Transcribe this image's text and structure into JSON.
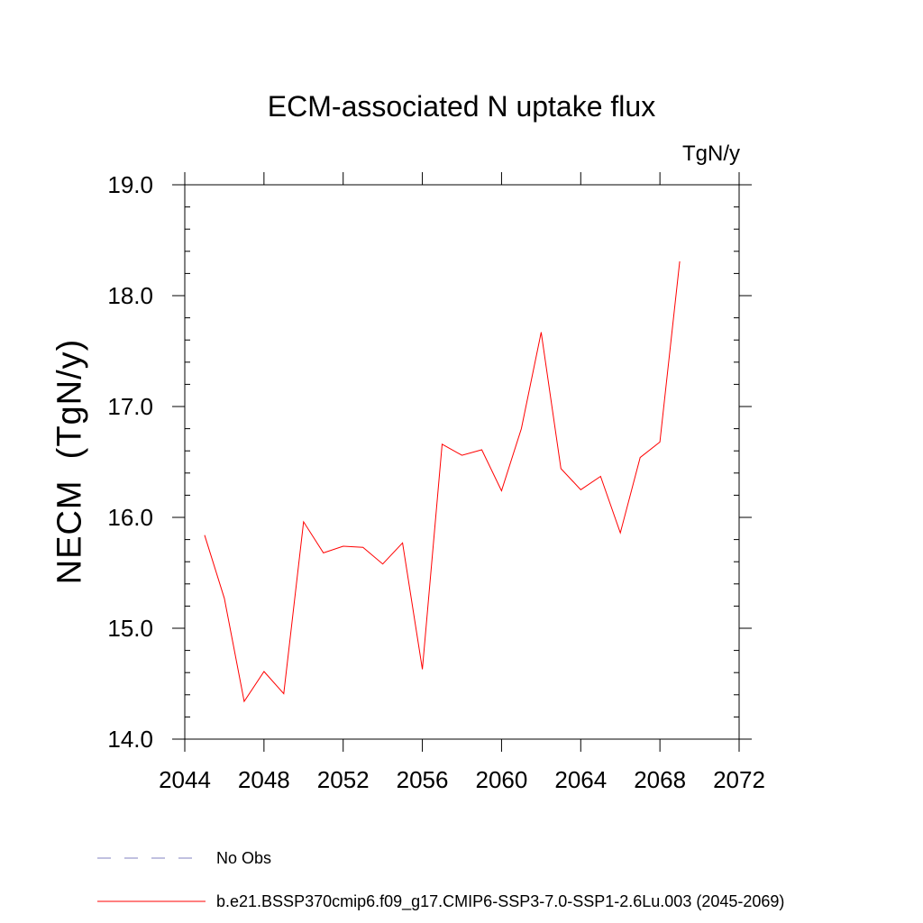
{
  "chart_data": {
    "type": "line",
    "title": "ECM-associated N uptake flux",
    "units_label": "TgN/y",
    "ylabel": "NECM  (TgN/y)",
    "xlabel": "",
    "xlim": [
      2044,
      2072
    ],
    "ylim": [
      14.0,
      19.0
    ],
    "x_ticks": [
      2044,
      2048,
      2052,
      2056,
      2060,
      2064,
      2068,
      2072
    ],
    "x_tick_labels": [
      "2044",
      "2048",
      "2052",
      "2056",
      "2060",
      "2064",
      "2068",
      "2072"
    ],
    "y_ticks": [
      14.0,
      15.0,
      16.0,
      17.0,
      18.0,
      19.0
    ],
    "y_tick_labels": [
      "14.0",
      "15.0",
      "16.0",
      "17.0",
      "18.0",
      "19.0"
    ],
    "grid": false,
    "legend_position": "bottom",
    "series": [
      {
        "name": "b.e21.BSSP370cmip6.f09_g17.CMIP6-SSP3-7.0-SSP1-2.6Lu.003 (2045-2069)",
        "color": "#ff0000",
        "style": "solid",
        "x": [
          2045,
          2046,
          2047,
          2048,
          2049,
          2050,
          2051,
          2052,
          2053,
          2054,
          2055,
          2056,
          2057,
          2058,
          2059,
          2060,
          2061,
          2062,
          2063,
          2064,
          2065,
          2066,
          2067,
          2068,
          2069
        ],
        "y": [
          15.84,
          15.27,
          14.34,
          14.61,
          14.41,
          15.96,
          15.68,
          15.74,
          15.73,
          15.58,
          15.77,
          14.63,
          16.66,
          16.56,
          16.61,
          16.24,
          16.8,
          17.67,
          16.44,
          16.25,
          16.37,
          15.86,
          16.54,
          16.68,
          18.31
        ]
      }
    ],
    "legend": [
      {
        "label": "No Obs",
        "color": "#8080c0",
        "style": "dashed"
      },
      {
        "label": "b.e21.BSSP370cmip6.f09_g17.CMIP6-SSP3-7.0-SSP1-2.6Lu.003 (2045-2069)",
        "color": "#ff0000",
        "style": "solid"
      }
    ]
  }
}
